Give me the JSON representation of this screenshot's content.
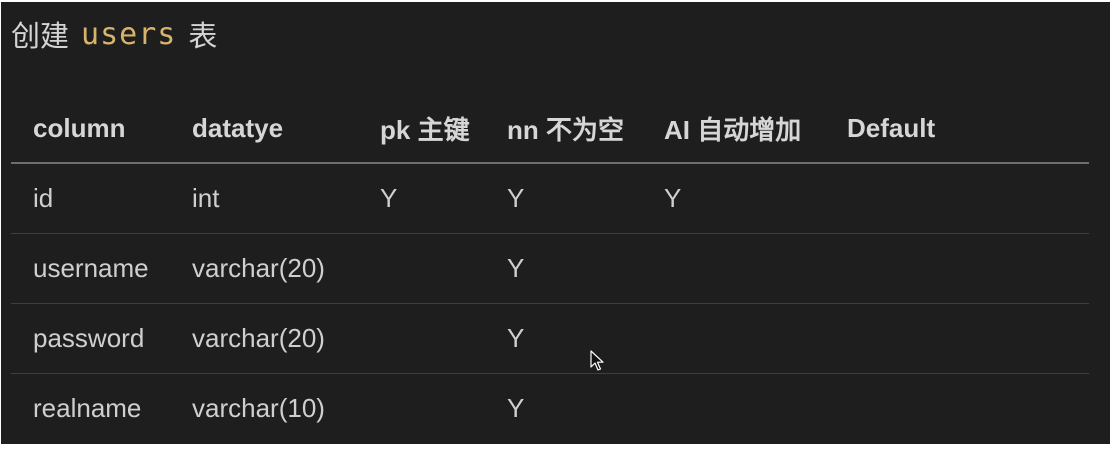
{
  "title": {
    "prefix": "创建",
    "table_name": "users",
    "suffix": "表"
  },
  "table": {
    "headers": [
      "column",
      "datatye",
      "pk 主键",
      "nn 不为空",
      "AI 自动增加",
      "Default"
    ],
    "rows": [
      [
        "id",
        "int",
        "Y",
        "Y",
        "Y",
        ""
      ],
      [
        "username",
        "varchar(20)",
        "",
        "Y",
        "",
        ""
      ],
      [
        "password",
        "varchar(20)",
        "",
        "Y",
        "",
        ""
      ],
      [
        "realname",
        "varchar(10)",
        "",
        "Y",
        "",
        ""
      ]
    ]
  },
  "colors": {
    "background": "#1e1e1e",
    "text": "#d9d9d9",
    "code_accent": "#d7b46a",
    "header_rule": "#6e6e6e",
    "row_rule": "#3e3e3e"
  },
  "icons": {
    "cursor": "mouse-pointer-icon"
  }
}
